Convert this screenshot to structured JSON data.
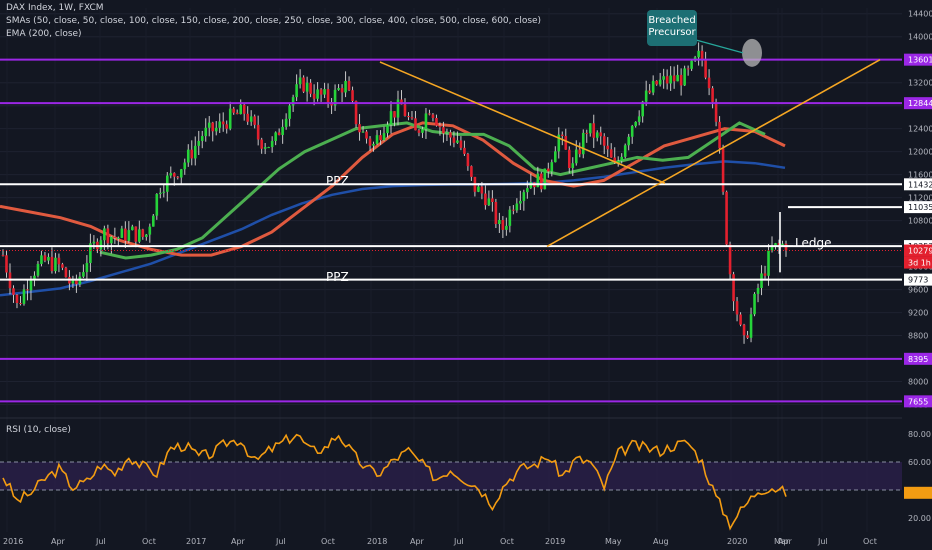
{
  "header": {
    "line1": "DAX Index, 1W, FXCM",
    "line2": "SMAs (50, close, 50, close, 100, close, 150, close, 200, close, 250, close, 300, close, 400, close, 500, close, 600, close)",
    "line3": "EMA (200, close)"
  },
  "callout": {
    "line1": "Breached",
    "line2": "Precursor"
  },
  "colors": {
    "background": "#131722",
    "up_candle": "#26d43a",
    "down_candle": "#e3202e",
    "wick": "#c8c8c8",
    "sma_green": "#4caf50",
    "sma_red": "#e05a3f",
    "ema_blue": "#1f4fa8",
    "purple": "#9b27e6",
    "white": "#ffffff",
    "orange": "#f5a623",
    "rsi": "#f39c12",
    "callout": "#1d6f74"
  },
  "chart_data": [
    {
      "type": "candlestick",
      "title": "DAX Index, 1W, FXCM",
      "ylim": [
        7400,
        14500
      ],
      "y_ticks": [
        "14400",
        "14000",
        "13600",
        "13200",
        "12800",
        "12400",
        "12000",
        "11600",
        "11200",
        "10800",
        "10400",
        "10000",
        "9600",
        "9200",
        "8800",
        "8400",
        "8000",
        "7600"
      ],
      "x_ticks": [
        "2016",
        "Apr",
        "Jul",
        "Oct",
        "2017",
        "Apr",
        "Jul",
        "Oct",
        "2018",
        "Apr",
        "Jul",
        "Oct",
        "2019",
        "May",
        "Aug",
        "2020",
        "Mar",
        "Apr",
        "Jul",
        "Oct"
      ],
      "close_path": [
        [
          "2016-01",
          10200
        ],
        [
          "2016-02",
          9300
        ],
        [
          "2016-03",
          9900
        ],
        [
          "2016-04",
          10100
        ],
        [
          "2016-05",
          10000
        ],
        [
          "2016-06",
          9600
        ],
        [
          "2016-07",
          10200
        ],
        [
          "2016-08",
          10600
        ],
        [
          "2016-09",
          10500
        ],
        [
          "2016-10",
          10600
        ],
        [
          "2016-11",
          10500
        ],
        [
          "2016-12",
          11400
        ],
        [
          "2017-01",
          11600
        ],
        [
          "2017-02",
          11900
        ],
        [
          "2017-03",
          12300
        ],
        [
          "2017-04",
          12400
        ],
        [
          "2017-05",
          12600
        ],
        [
          "2017-06",
          12700
        ],
        [
          "2017-07",
          12200
        ],
        [
          "2017-08",
          12100
        ],
        [
          "2017-09",
          12800
        ],
        [
          "2017-10",
          13200
        ],
        [
          "2017-11",
          13000
        ],
        [
          "2017-12",
          12900
        ],
        [
          "2018-01",
          13200
        ],
        [
          "2018-02",
          12400
        ],
        [
          "2018-03",
          12100
        ],
        [
          "2018-04",
          12600
        ],
        [
          "2018-05",
          12800
        ],
        [
          "2018-06",
          12300
        ],
        [
          "2018-07",
          12800
        ],
        [
          "2018-08",
          12300
        ],
        [
          "2018-09",
          12200
        ],
        [
          "2018-10",
          11400
        ],
        [
          "2018-11",
          11200
        ],
        [
          "2018-12",
          10600
        ],
        [
          "2019-01",
          11200
        ],
        [
          "2019-02",
          11500
        ],
        [
          "2019-03",
          11500
        ],
        [
          "2019-04",
          12300
        ],
        [
          "2019-05",
          11700
        ],
        [
          "2019-06",
          12400
        ],
        [
          "2019-07",
          12200
        ],
        [
          "2019-08",
          11700
        ],
        [
          "2019-09",
          12400
        ],
        [
          "2019-10",
          12900
        ],
        [
          "2019-11",
          13200
        ],
        [
          "2019-12",
          13250
        ],
        [
          "2020-01",
          13300
        ],
        [
          "2020-02",
          13700
        ],
        [
          "2020-02b",
          12900
        ],
        [
          "2020-03a",
          10000
        ],
        [
          "2020-03b",
          8600
        ],
        [
          "2020-03c",
          9600
        ],
        [
          "2020-04a",
          10300
        ],
        [
          "2020-04b",
          10400
        ]
      ],
      "levels": [
        {
          "label": "13601",
          "value": 13601,
          "color": "#9b27e6"
        },
        {
          "label": "12844",
          "value": 12844,
          "color": "#9b27e6"
        },
        {
          "label": "11432",
          "value": 11432,
          "color": "#ffffff"
        },
        {
          "label": "11035",
          "value": 11035,
          "color": "#ffffff"
        },
        {
          "label": "10357",
          "value": 10357,
          "color": "#ffffff"
        },
        {
          "label": "10279",
          "value": 10279,
          "color": "#e3202e",
          "dotted": true
        },
        {
          "label": "9773",
          "value": 9773,
          "color": "#ffffff"
        },
        {
          "label": "8395",
          "value": 8395,
          "color": "#9b27e6"
        },
        {
          "label": "7655",
          "value": 7655,
          "color": "#9b27e6"
        }
      ],
      "countdown_label": "3d 1h",
      "annotations": [
        "PPZ",
        "PPZ",
        "Ledge"
      ],
      "sma_green_path": [
        10250,
        10150,
        10200,
        10300,
        10500,
        10900,
        11300,
        11700,
        12000,
        12200,
        12400,
        12450,
        12500,
        12350,
        12300,
        12300,
        12100,
        11700,
        11600,
        11700,
        11800,
        11900,
        11850,
        11900,
        12200,
        12500,
        12300
      ],
      "sma_red_path": [
        11050,
        10950,
        10850,
        10700,
        10450,
        10300,
        10200,
        10200,
        10350,
        10600,
        11000,
        11400,
        11900,
        12300,
        12500,
        12450,
        12200,
        11800,
        11500,
        11400,
        11500,
        11800,
        12100,
        12250,
        12400,
        12350,
        12100
      ],
      "ema_blue_path": [
        9500,
        9560,
        9620,
        9750,
        9900,
        10050,
        10250,
        10450,
        10650,
        10900,
        11100,
        11250,
        11350,
        11400,
        11420,
        11430,
        11430,
        11440,
        11460,
        11500,
        11560,
        11640,
        11720,
        11780,
        11830,
        11800,
        11720
      ]
    },
    {
      "type": "line",
      "title": "RSI (10, close)",
      "ylim": [
        10,
        90
      ],
      "y_ticks": [
        "80.00",
        "60.00",
        "40.00",
        "20.00"
      ],
      "band": [
        40,
        60
      ],
      "series": [
        {
          "values": [
            50,
            32,
            38,
            48,
            55,
            42,
            46,
            58,
            52,
            64,
            57,
            52,
            70,
            72,
            64,
            66,
            74,
            76,
            60,
            68,
            74,
            80,
            68,
            70,
            80,
            66,
            55,
            52,
            62,
            68,
            58,
            48,
            55,
            48,
            42,
            30,
            46,
            55,
            58,
            64,
            50,
            62,
            60,
            42,
            66,
            72,
            70,
            68,
            72,
            74,
            60,
            35,
            16,
            28,
            40,
            42,
            38
          ]
        }
      ]
    }
  ]
}
